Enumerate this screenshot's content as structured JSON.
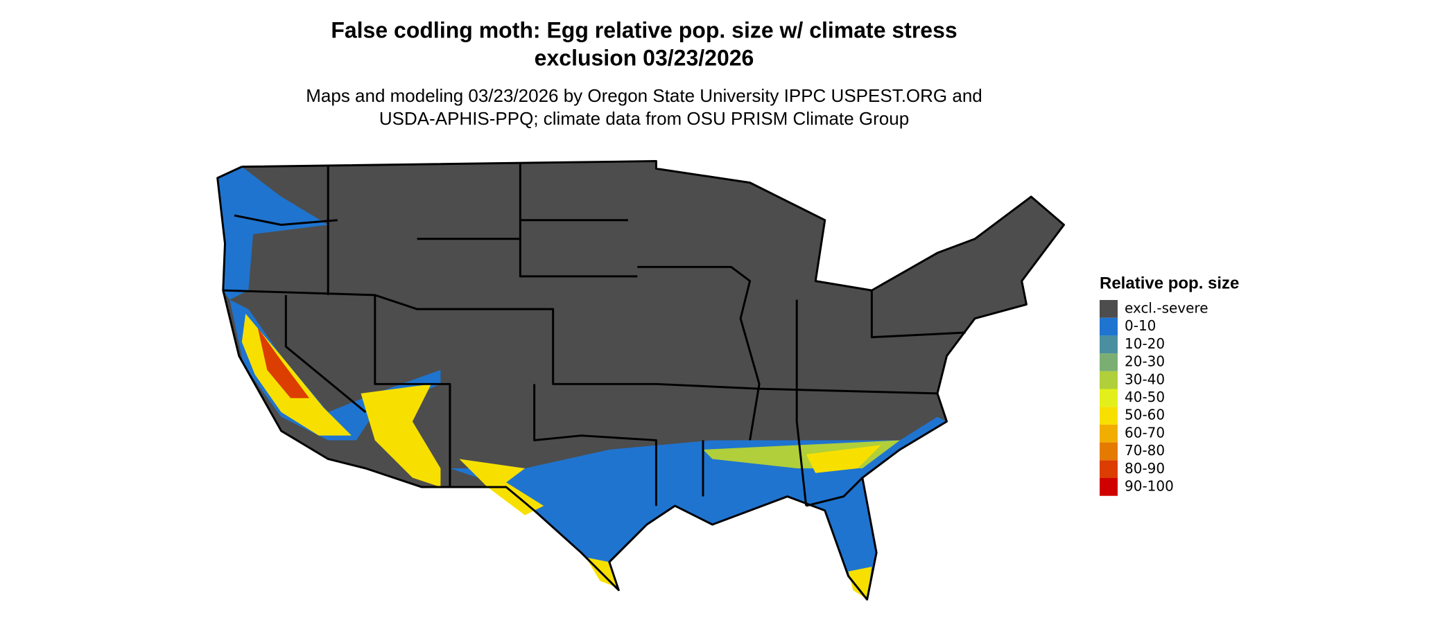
{
  "header": {
    "title": [
      "False codling moth: Egg relative pop. size w/ climate stress",
      "exclusion 03/23/2026"
    ],
    "subtitle": [
      "Maps and modeling 03/23/2026 by Oregon State University IPPC USPEST.ORG and",
      "USDA-APHIS-PPQ; climate data from OSU PRISM Climate Group"
    ]
  },
  "legend": {
    "title": "Relative pop. size",
    "items": [
      {
        "label": "excl.-severe",
        "color": "#4d4d4d"
      },
      {
        "label": "0-10",
        "color": "#1f74d0"
      },
      {
        "label": "10-20",
        "color": "#4a8fa0"
      },
      {
        "label": "20-30",
        "color": "#7aae72"
      },
      {
        "label": "30-40",
        "color": "#b0cf3a"
      },
      {
        "label": "40-50",
        "color": "#e3ef1a"
      },
      {
        "label": "50-60",
        "color": "#f7e000"
      },
      {
        "label": "60-70",
        "color": "#f2ae00"
      },
      {
        "label": "70-80",
        "color": "#e47a00"
      },
      {
        "label": "80-90",
        "color": "#dc3d00"
      },
      {
        "label": "90-100",
        "color": "#d00000"
      }
    ]
  }
}
